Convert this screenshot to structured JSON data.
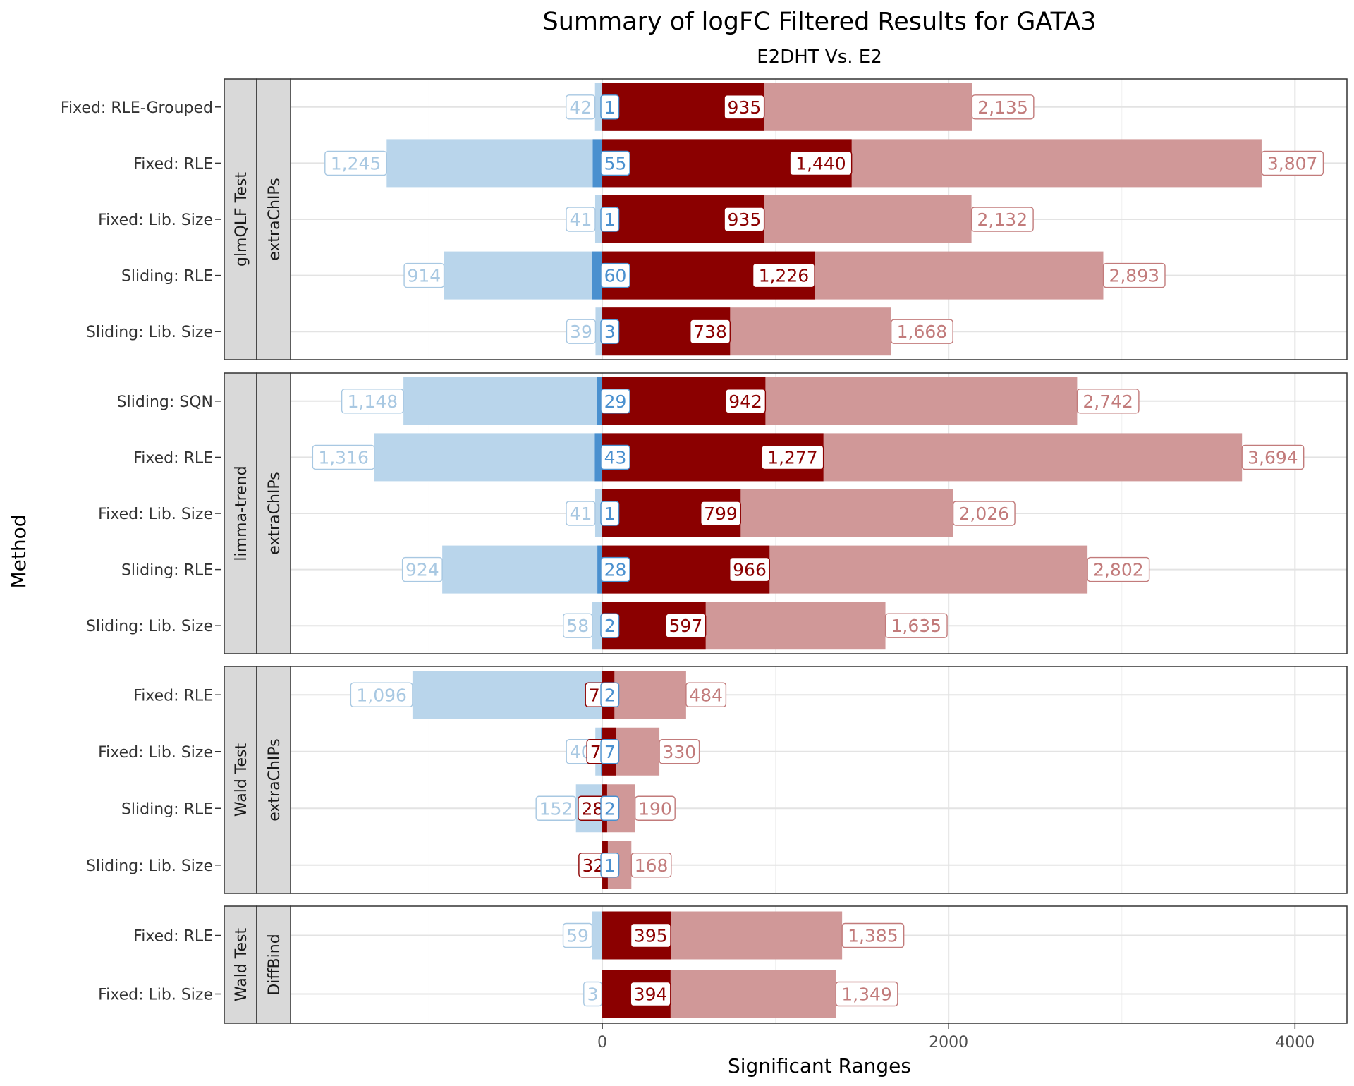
{
  "chart_data": {
    "type": "bar",
    "title": "Summary of logFC Filtered Results for GATA3",
    "subtitle": "E2DHT Vs. E2",
    "xlabel": "Significant Ranges",
    "ylabel": "Method",
    "xlim": [
      -1800,
      4300
    ],
    "xticks": [
      0,
      2000,
      4000
    ],
    "grid": true,
    "legend": "none",
    "colors": {
      "down_all": "#b9d5eb",
      "down_strong": "#4a90cf",
      "up_strong": "#8b0000",
      "up_all": "#d09898"
    },
    "panels": [
      {
        "test": "glmQLF Test",
        "tool": "extraChIPs",
        "rows": [
          {
            "label": "Fixed: RLE-Grouped",
            "down_all": 42,
            "down_strong": 1,
            "up_strong": 935,
            "up_all": 2135,
            "down_all_label": "42",
            "down_strong_label": "1",
            "up_strong_label": "935",
            "up_all_label": "2,135"
          },
          {
            "label": "Fixed: RLE",
            "down_all": 1245,
            "down_strong": 55,
            "up_strong": 1440,
            "up_all": 3807,
            "down_all_label": "1,245",
            "down_strong_label": "55",
            "up_strong_label": "1,440",
            "up_all_label": "3,807"
          },
          {
            "label": "Fixed: Lib. Size",
            "down_all": 41,
            "down_strong": 1,
            "up_strong": 935,
            "up_all": 2132,
            "down_all_label": "41",
            "down_strong_label": "1",
            "up_strong_label": "935",
            "up_all_label": "2,132"
          },
          {
            "label": "Sliding: RLE",
            "down_all": 914,
            "down_strong": 60,
            "up_strong": 1226,
            "up_all": 2893,
            "down_all_label": "914",
            "down_strong_label": "60",
            "up_strong_label": "1,226",
            "up_all_label": "2,893"
          },
          {
            "label": "Sliding: Lib. Size",
            "down_all": 39,
            "down_strong": 3,
            "up_strong": 738,
            "up_all": 1668,
            "down_all_label": "39",
            "down_strong_label": "3",
            "up_strong_label": "738",
            "up_all_label": "1,668"
          }
        ]
      },
      {
        "test": "limma-trend",
        "tool": "extraChIPs",
        "rows": [
          {
            "label": "Sliding: SQN",
            "down_all": 1148,
            "down_strong": 29,
            "up_strong": 942,
            "up_all": 2742,
            "down_all_label": "1,148",
            "down_strong_label": "29",
            "up_strong_label": "942",
            "up_all_label": "2,742"
          },
          {
            "label": "Fixed: RLE",
            "down_all": 1316,
            "down_strong": 43,
            "up_strong": 1277,
            "up_all": 3694,
            "down_all_label": "1,316",
            "down_strong_label": "43",
            "up_strong_label": "1,277",
            "up_all_label": "3,694"
          },
          {
            "label": "Fixed: Lib. Size",
            "down_all": 41,
            "down_strong": 1,
            "up_strong": 799,
            "up_all": 2026,
            "down_all_label": "41",
            "down_strong_label": "1",
            "up_strong_label": "799",
            "up_all_label": "2,026"
          },
          {
            "label": "Sliding: RLE",
            "down_all": 924,
            "down_strong": 28,
            "up_strong": 966,
            "up_all": 2802,
            "down_all_label": "924",
            "down_strong_label": "28",
            "up_strong_label": "966",
            "up_all_label": "2,802"
          },
          {
            "label": "Sliding: Lib. Size",
            "down_all": 58,
            "down_strong": 2,
            "up_strong": 597,
            "up_all": 1635,
            "down_all_label": "58",
            "down_strong_label": "2",
            "up_strong_label": "597",
            "up_all_label": "1,635"
          }
        ]
      },
      {
        "test": "Wald Test",
        "tool": "extraChIPs",
        "rows": [
          {
            "label": "Fixed: RLE",
            "down_all": 1096,
            "down_strong": 2,
            "up_strong": 70,
            "up_all": 484,
            "down_all_label": "1,096",
            "down_strong_label": "2",
            "up_strong_label": "70",
            "up_all_label": "484"
          },
          {
            "label": "Fixed: Lib. Size",
            "down_all": 40,
            "down_strong": 7,
            "up_strong": 78,
            "up_all": 330,
            "down_all_label": "40",
            "down_strong_label": "7",
            "up_strong_label": "78",
            "up_all_label": "330"
          },
          {
            "label": "Sliding: RLE",
            "down_all": 152,
            "down_strong": 2,
            "up_strong": 28,
            "up_all": 190,
            "down_all_label": "152",
            "down_strong_label": "2",
            "up_strong_label": "28",
            "up_all_label": "190"
          },
          {
            "label": "Sliding: Lib. Size",
            "down_all": 3,
            "down_strong": 1,
            "up_strong": 32,
            "up_all": 168,
            "down_all_label": "3",
            "down_strong_label": "1",
            "up_strong_label": "32",
            "up_all_label": "168"
          }
        ]
      },
      {
        "test": "Wald Test",
        "tool": "DiffBind",
        "rows": [
          {
            "label": "Fixed: RLE",
            "down_all": 59,
            "down_strong": 0,
            "up_strong": 395,
            "up_all": 1385,
            "down_all_label": "59",
            "down_strong_label": "",
            "up_strong_label": "395",
            "up_all_label": "1,385"
          },
          {
            "label": "Fixed: Lib. Size",
            "down_all": 3,
            "down_strong": 0,
            "up_strong": 394,
            "up_all": 1349,
            "down_all_label": "3",
            "down_strong_label": "",
            "up_strong_label": "394",
            "up_all_label": "1,349"
          }
        ]
      }
    ]
  }
}
